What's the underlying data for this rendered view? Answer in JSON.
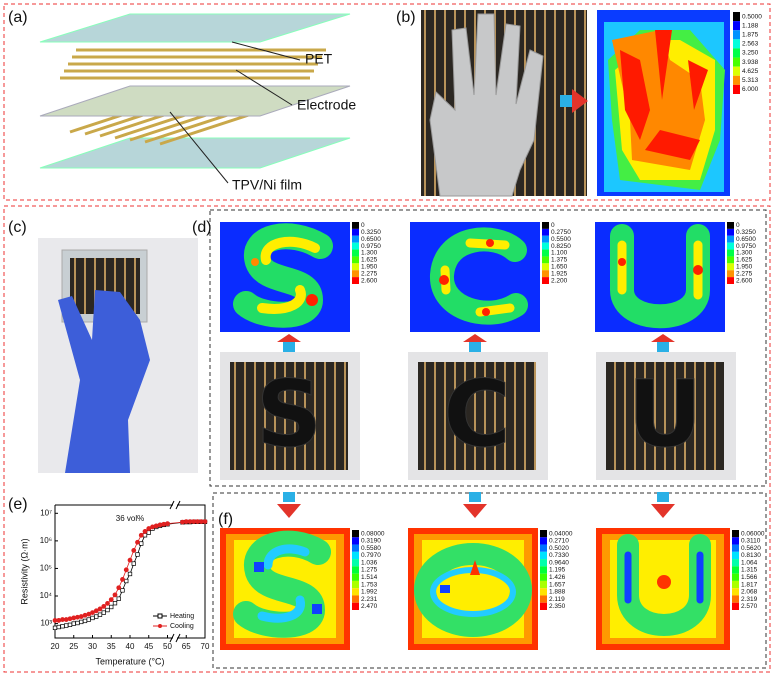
{
  "panels": {
    "a": {
      "label": "(a)",
      "layers": [
        "PET",
        "Electrode",
        "TPV/Ni film"
      ]
    },
    "b": {
      "label": "(b)",
      "colorbar": [
        "0.5000",
        "1.188",
        "1.875",
        "2.563",
        "3.250",
        "3.938",
        "4.625",
        "5.313",
        "6.000"
      ]
    },
    "c": {
      "label": "(c)"
    },
    "d": {
      "label": "(d)",
      "letters": [
        "S",
        "C",
        "U"
      ],
      "colorbars": [
        [
          "0",
          "0.3250",
          "0.6500",
          "0.9750",
          "1.300",
          "1.625",
          "1.950",
          "2.275",
          "2.600"
        ],
        [
          "0",
          "0.2750",
          "0.5500",
          "0.8250",
          "1.100",
          "1.375",
          "1.650",
          "1.925",
          "2.200"
        ],
        [
          "0",
          "0.3250",
          "0.6500",
          "0.9750",
          "1.300",
          "1.625",
          "1.950",
          "2.275",
          "2.600"
        ]
      ]
    },
    "e": {
      "label": "(e)"
    },
    "f": {
      "label": "(f)",
      "colorbars": [
        [
          "0.08000",
          "0.3190",
          "0.5580",
          "0.7970",
          "1.036",
          "1.275",
          "1.514",
          "1.753",
          "1.992",
          "2.231",
          "2.470"
        ],
        [
          "0.04000",
          "0.2710",
          "0.5020",
          "0.7330",
          "0.9640",
          "1.195",
          "1.426",
          "1.657",
          "1.888",
          "2.119",
          "2.350"
        ],
        [
          "0.06000",
          "0.3110",
          "0.5620",
          "0.8130",
          "1.064",
          "1.315",
          "1.566",
          "1.817",
          "2.068",
          "2.319",
          "2.570"
        ]
      ]
    }
  },
  "chart_data": {
    "type": "line",
    "annotation": "36 vol%",
    "x_label": "Temperature (°C)",
    "y_label": "Resistivity (Ω·m)",
    "x": [
      20,
      21,
      22,
      23,
      24,
      25,
      26,
      27,
      28,
      29,
      30,
      31,
      32,
      33,
      34,
      35,
      36,
      37,
      38,
      39,
      40,
      41,
      42,
      43,
      44,
      45,
      46,
      47,
      48,
      49,
      50,
      64,
      65,
      66,
      67,
      68,
      69,
      70
    ],
    "series": [
      {
        "name": "Heating",
        "color": "#000000",
        "values": [
          700,
          750,
          800,
          850,
          900,
          1000,
          1050,
          1150,
          1250,
          1400,
          1600,
          1800,
          2100,
          2500,
          3100,
          4000,
          5500,
          8000,
          16000,
          35000,
          63000,
          150000,
          320000,
          800000,
          1600000,
          2000000,
          2800000,
          3200000,
          3500000,
          3800000,
          4000000,
          4700000,
          4800000,
          4800000,
          4900000,
          4900000,
          4900000,
          4900000
        ]
      },
      {
        "name": "Cooling",
        "color": "#e02020",
        "values": [
          1300,
          1300,
          1400,
          1400,
          1500,
          1600,
          1700,
          1800,
          2000,
          2200,
          2500,
          2900,
          3400,
          4200,
          5400,
          7400,
          11000,
          20000,
          40000,
          89000,
          200000,
          450000,
          890000,
          1600000,
          2200000,
          2800000,
          3200000,
          3500000,
          3800000,
          4000000,
          4200000,
          4800000,
          5000000,
          5000000,
          5000000,
          5000000,
          5000000,
          5000000
        ]
      }
    ],
    "xlim": [
      20,
      70
    ],
    "x_break": [
      52,
      62
    ],
    "xticks": [
      20,
      25,
      30,
      35,
      40,
      45,
      50,
      65,
      70
    ],
    "ylim": [
      300,
      20000000
    ],
    "log_y": true,
    "yticks": [
      {
        "value": 1000,
        "label": "10³"
      },
      {
        "value": 10000,
        "label": "10⁴"
      },
      {
        "value": 100000,
        "label": "10⁵"
      },
      {
        "value": 1000000,
        "label": "10⁶"
      },
      {
        "value": 10000000,
        "label": "10⁷"
      }
    ],
    "legend": "lower right"
  }
}
